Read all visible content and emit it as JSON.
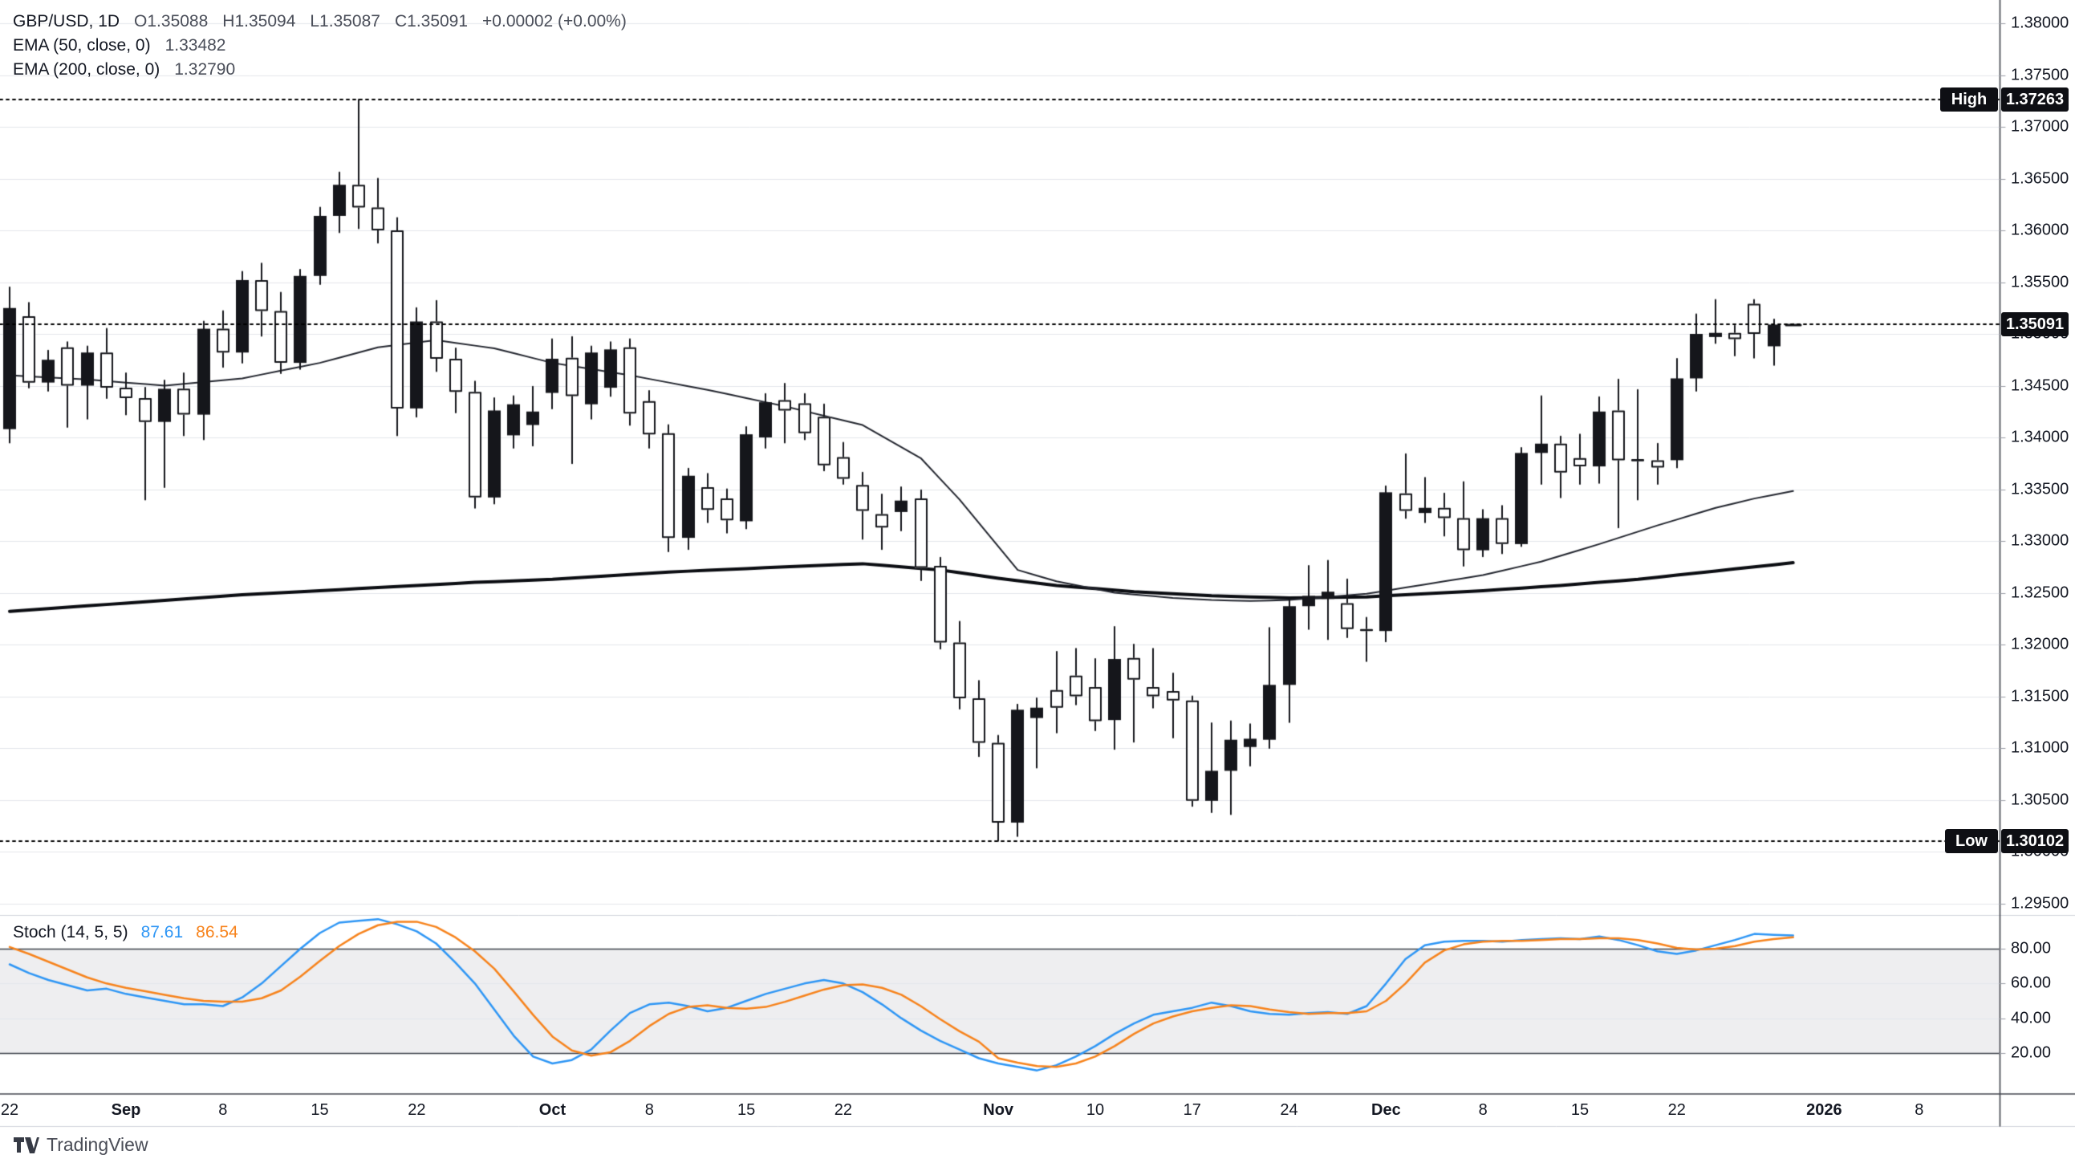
{
  "legend": {
    "symbol": "GBP/USD, 1D",
    "o": "O1.35088",
    "h": "H1.35094",
    "l": "L1.35087",
    "c": "C1.35091",
    "change": "+0.00002 (+0.00%)",
    "ema50_title": "EMA (50, close, 0)",
    "ema50_value": "1.33482",
    "ema200_title": "EMA (200, close, 0)",
    "ema200_value": "1.32790",
    "stoch_title": "Stoch (14, 5, 5)",
    "stoch_k_value": "87.61",
    "stoch_d_value": "86.54"
  },
  "price_axis_labels": [
    "1.38000",
    "1.37500",
    "1.37000",
    "1.36500",
    "1.36000",
    "1.35500",
    "1.35000",
    "1.34500",
    "1.34000",
    "1.33500",
    "1.33000",
    "1.32500",
    "1.32000",
    "1.31500",
    "1.31000",
    "1.30500",
    "1.30000",
    "1.29500"
  ],
  "stoch_axis_labels": [
    "80.00",
    "60.00",
    "40.00",
    "20.00"
  ],
  "badges": {
    "high_label": "High",
    "high_value": "1.37263",
    "low_label": "Low",
    "low_value": "1.30102",
    "last_value": "1.35091"
  },
  "logo_text": "TradingView",
  "colors": {
    "grid": "#E4E6EC",
    "axis_text": "#131722",
    "axis_border": "#42454d",
    "pane_separator": "#d1d4dc",
    "candle_up_fill": "#15161b",
    "candle_down_fill": "#ffffff",
    "candle_border": "#15161b",
    "ema50": "#23262f",
    "ema200": "#0b0d12",
    "stoch_k": "#2E96F5",
    "stoch_d": "#F7831C",
    "stoch_band_fill": "rgba(135,138,150,0.14)",
    "stoch_band_line": "#3f434c",
    "dotted_line": "#000000",
    "badge_bg": "#0e0f14",
    "badge_text": "#ffffff"
  },
  "chart_data": {
    "type": "candlestick",
    "symbol": "GBP/USD",
    "timeframe": "1D",
    "high_marker": 1.37263,
    "low_marker": 1.30102,
    "last_price": 1.35091,
    "price_axis": {
      "top": 1.38,
      "bottom": 1.295,
      "step": 0.005
    },
    "time_ticks": [
      {
        "label": "22",
        "i": 0,
        "bold": false
      },
      {
        "label": "Sep",
        "i": 6,
        "bold": true
      },
      {
        "label": "8",
        "i": 11,
        "bold": false
      },
      {
        "label": "15",
        "i": 16,
        "bold": false
      },
      {
        "label": "22",
        "i": 21,
        "bold": false
      },
      {
        "label": "Oct",
        "i": 28,
        "bold": true
      },
      {
        "label": "8",
        "i": 33,
        "bold": false
      },
      {
        "label": "15",
        "i": 38,
        "bold": false
      },
      {
        "label": "22",
        "i": 43,
        "bold": false
      },
      {
        "label": "Nov",
        "i": 51,
        "bold": true
      },
      {
        "label": "10",
        "i": 56,
        "bold": false
      },
      {
        "label": "17",
        "i": 61,
        "bold": false
      },
      {
        "label": "24",
        "i": 66,
        "bold": false
      },
      {
        "label": "Dec",
        "i": 71,
        "bold": true
      },
      {
        "label": "8",
        "i": 76,
        "bold": false
      },
      {
        "label": "15",
        "i": 81,
        "bold": false
      },
      {
        "label": "22",
        "i": 86,
        "bold": false
      },
      {
        "label": "2026",
        "i": 93.6,
        "bold": true
      },
      {
        "label": "8",
        "i": 98.5,
        "bold": false
      }
    ],
    "dates": [
      "Aug 22",
      "Aug 25",
      "Aug 26",
      "Aug 27",
      "Aug 28",
      "Aug 29",
      "Sep 1",
      "Sep 2",
      "Sep 3",
      "Sep 4",
      "Sep 5",
      "Sep 8",
      "Sep 9",
      "Sep 10",
      "Sep 11",
      "Sep 12",
      "Sep 15",
      "Sep 16",
      "Sep 17",
      "Sep 18",
      "Sep 19",
      "Sep 22",
      "Sep 23",
      "Sep 24",
      "Sep 25",
      "Sep 26",
      "Sep 29",
      "Sep 30",
      "Oct 1",
      "Oct 2",
      "Oct 3",
      "Oct 6",
      "Oct 7",
      "Oct 8",
      "Oct 9",
      "Oct 10",
      "Oct 13",
      "Oct 14",
      "Oct 15",
      "Oct 16",
      "Oct 17",
      "Oct 20",
      "Oct 21",
      "Oct 22",
      "Oct 23",
      "Oct 24",
      "Oct 27",
      "Oct 28",
      "Oct 29",
      "Oct 30",
      "Oct 31",
      "Nov 3",
      "Nov 4",
      "Nov 5",
      "Nov 6",
      "Nov 7",
      "Nov 10",
      "Nov 11",
      "Nov 12",
      "Nov 13",
      "Nov 14",
      "Nov 17",
      "Nov 18",
      "Nov 19",
      "Nov 20",
      "Nov 21",
      "Nov 24",
      "Nov 25",
      "Nov 26",
      "Nov 27",
      "Nov 28",
      "Dec 1",
      "Dec 2",
      "Dec 3",
      "Dec 4",
      "Dec 5",
      "Dec 8",
      "Dec 9",
      "Dec 10",
      "Dec 11",
      "Dec 12",
      "Dec 15",
      "Dec 16",
      "Dec 17",
      "Dec 18",
      "Dec 19",
      "Dec 22",
      "Dec 23",
      "Dec 24",
      "Dec 26",
      "Dec 29",
      "Dec 30",
      "Dec 31"
    ],
    "ohlc": [
      [
        1.3408,
        1.3545,
        1.3395,
        1.3525
      ],
      [
        1.3517,
        1.353,
        1.3448,
        1.3453
      ],
      [
        1.3453,
        1.3484,
        1.3445,
        1.3475
      ],
      [
        1.3487,
        1.3492,
        1.341,
        1.345
      ],
      [
        1.345,
        1.3488,
        1.3418,
        1.3482
      ],
      [
        1.3482,
        1.3505,
        1.3438,
        1.3448
      ],
      [
        1.3448,
        1.3462,
        1.3422,
        1.3438
      ],
      [
        1.3438,
        1.3448,
        1.334,
        1.3415
      ],
      [
        1.3415,
        1.3455,
        1.3352,
        1.3447
      ],
      [
        1.3447,
        1.3462,
        1.3402,
        1.3422
      ],
      [
        1.3422,
        1.3512,
        1.3398,
        1.3505
      ],
      [
        1.3505,
        1.3522,
        1.3468,
        1.3482
      ],
      [
        1.3482,
        1.356,
        1.3472,
        1.3552
      ],
      [
        1.3552,
        1.3568,
        1.3498,
        1.3522
      ],
      [
        1.3522,
        1.354,
        1.3462,
        1.3472
      ],
      [
        1.3472,
        1.3562,
        1.3466,
        1.3556
      ],
      [
        1.3556,
        1.3622,
        1.3548,
        1.3614
      ],
      [
        1.3614,
        1.3656,
        1.3598,
        1.3644
      ],
      [
        1.3644,
        1.37263,
        1.3602,
        1.3622
      ],
      [
        1.3622,
        1.365,
        1.3588,
        1.36
      ],
      [
        1.36,
        1.3612,
        1.3402,
        1.3428
      ],
      [
        1.3428,
        1.3525,
        1.342,
        1.3512
      ],
      [
        1.3512,
        1.3532,
        1.3464,
        1.3476
      ],
      [
        1.3476,
        1.3486,
        1.3424,
        1.3444
      ],
      [
        1.3444,
        1.3454,
        1.3332,
        1.3342
      ],
      [
        1.3342,
        1.3438,
        1.3336,
        1.3426
      ],
      [
        1.3402,
        1.344,
        1.339,
        1.3432
      ],
      [
        1.3412,
        1.3449,
        1.3392,
        1.3425
      ],
      [
        1.3443,
        1.3495,
        1.3428,
        1.3476
      ],
      [
        1.3477,
        1.3497,
        1.3375,
        1.344
      ],
      [
        1.3432,
        1.3488,
        1.3418,
        1.3482
      ],
      [
        1.3448,
        1.3492,
        1.344,
        1.3485
      ],
      [
        1.3487,
        1.3495,
        1.3412,
        1.3423
      ],
      [
        1.3435,
        1.3445,
        1.339,
        1.3403
      ],
      [
        1.3404,
        1.3412,
        1.329,
        1.3303
      ],
      [
        1.3303,
        1.337,
        1.3292,
        1.3363
      ],
      [
        1.3352,
        1.3365,
        1.3318,
        1.333
      ],
      [
        1.3341,
        1.335,
        1.3308,
        1.332
      ],
      [
        1.3319,
        1.341,
        1.3312,
        1.3403
      ],
      [
        1.34,
        1.3442,
        1.339,
        1.3434
      ],
      [
        1.3436,
        1.3452,
        1.3395,
        1.3426
      ],
      [
        1.3433,
        1.3442,
        1.3398,
        1.3404
      ],
      [
        1.342,
        1.3432,
        1.3368,
        1.3373
      ],
      [
        1.3381,
        1.3395,
        1.3355,
        1.336
      ],
      [
        1.3354,
        1.3366,
        1.3302,
        1.3329
      ],
      [
        1.3326,
        1.3345,
        1.3292,
        1.3313
      ],
      [
        1.3328,
        1.3352,
        1.331,
        1.3339
      ],
      [
        1.3341,
        1.3349,
        1.3262,
        1.3274
      ],
      [
        1.3276,
        1.3284,
        1.3196,
        1.3202
      ],
      [
        1.3202,
        1.3222,
        1.3138,
        1.3148
      ],
      [
        1.3148,
        1.3165,
        1.3092,
        1.3105
      ],
      [
        1.3105,
        1.3112,
        1.30102,
        1.3028
      ],
      [
        1.3028,
        1.3142,
        1.3015,
        1.3137
      ],
      [
        1.3129,
        1.3148,
        1.3081,
        1.3139
      ],
      [
        1.3156,
        1.3193,
        1.3115,
        1.3139
      ],
      [
        1.317,
        1.3196,
        1.3142,
        1.315
      ],
      [
        1.3159,
        1.3186,
        1.3117,
        1.3126
      ],
      [
        1.3127,
        1.3217,
        1.3099,
        1.3186
      ],
      [
        1.3187,
        1.32,
        1.3106,
        1.3166
      ],
      [
        1.3159,
        1.3196,
        1.3139,
        1.315
      ],
      [
        1.3155,
        1.3172,
        1.311,
        1.3146
      ],
      [
        1.3146,
        1.315,
        1.3044,
        1.3049
      ],
      [
        1.3049,
        1.3124,
        1.3038,
        1.3078
      ],
      [
        1.3078,
        1.3126,
        1.3036,
        1.3108
      ],
      [
        1.3101,
        1.3123,
        1.3083,
        1.3109
      ],
      [
        1.3108,
        1.3216,
        1.31,
        1.3161
      ],
      [
        1.3161,
        1.3243,
        1.3125,
        1.3237
      ],
      [
        1.3237,
        1.3276,
        1.3215,
        1.3247
      ],
      [
        1.3244,
        1.3281,
        1.3205,
        1.3251
      ],
      [
        1.324,
        1.3263,
        1.3207,
        1.3215
      ],
      [
        1.3215,
        1.3226,
        1.3184,
        1.3213
      ],
      [
        1.3213,
        1.3353,
        1.3203,
        1.3347
      ],
      [
        1.3346,
        1.3384,
        1.3322,
        1.3329
      ],
      [
        1.3327,
        1.3361,
        1.3318,
        1.3332
      ],
      [
        1.3332,
        1.3346,
        1.3305,
        1.3322
      ],
      [
        1.3322,
        1.3357,
        1.3276,
        1.3291
      ],
      [
        1.3291,
        1.333,
        1.3285,
        1.3322
      ],
      [
        1.3322,
        1.3334,
        1.3288,
        1.3297
      ],
      [
        1.3297,
        1.339,
        1.3295,
        1.3385
      ],
      [
        1.3385,
        1.344,
        1.3355,
        1.3394
      ],
      [
        1.3394,
        1.3401,
        1.3342,
        1.3366
      ],
      [
        1.338,
        1.3403,
        1.3355,
        1.3372
      ],
      [
        1.3372,
        1.3439,
        1.3356,
        1.3425
      ],
      [
        1.3426,
        1.3456,
        1.3313,
        1.3378
      ],
      [
        1.3379,
        1.3446,
        1.334,
        1.3377
      ],
      [
        1.3378,
        1.3394,
        1.3355,
        1.3371
      ],
      [
        1.3378,
        1.3476,
        1.3371,
        1.3457
      ],
      [
        1.3457,
        1.3519,
        1.3445,
        1.35
      ],
      [
        1.3497,
        1.3533,
        1.3491,
        1.3501
      ],
      [
        1.3501,
        1.3508,
        1.3479,
        1.3495
      ],
      [
        1.3529,
        1.3533,
        1.3477,
        1.35
      ],
      [
        1.3488,
        1.3514,
        1.347,
        1.3509
      ],
      [
        1.35088,
        1.35094,
        1.35087,
        1.35091
      ]
    ],
    "ema50_knots": [
      [
        0,
        1.346
      ],
      [
        4,
        1.3456
      ],
      [
        8,
        1.345
      ],
      [
        12,
        1.3457
      ],
      [
        16,
        1.3472
      ],
      [
        19,
        1.3487
      ],
      [
        22,
        1.3494
      ],
      [
        25,
        1.3486
      ],
      [
        28,
        1.3472
      ],
      [
        32,
        1.346
      ],
      [
        36,
        1.3446
      ],
      [
        40,
        1.343
      ],
      [
        44,
        1.3412
      ],
      [
        47,
        1.338
      ],
      [
        49,
        1.334
      ],
      [
        52,
        1.3272
      ],
      [
        54,
        1.3261
      ],
      [
        57,
        1.325
      ],
      [
        60,
        1.3245
      ],
      [
        62,
        1.3243
      ],
      [
        64,
        1.3242
      ],
      [
        66,
        1.3243
      ],
      [
        68,
        1.3246
      ],
      [
        70,
        1.3249
      ],
      [
        71,
        1.3252
      ],
      [
        73,
        1.3258
      ],
      [
        76,
        1.3267
      ],
      [
        79,
        1.328
      ],
      [
        82,
        1.3297
      ],
      [
        85,
        1.3315
      ],
      [
        88,
        1.3332
      ],
      [
        90,
        1.3341
      ],
      [
        92,
        1.33482
      ]
    ],
    "ema200_knots": [
      [
        0,
        1.3232
      ],
      [
        6,
        1.324
      ],
      [
        12,
        1.3248
      ],
      [
        18,
        1.3254
      ],
      [
        24,
        1.326
      ],
      [
        28,
        1.3263
      ],
      [
        34,
        1.327
      ],
      [
        40,
        1.3275
      ],
      [
        44,
        1.3278
      ],
      [
        48,
        1.3272
      ],
      [
        51,
        1.3264
      ],
      [
        54,
        1.3257
      ],
      [
        58,
        1.3251
      ],
      [
        62,
        1.3247
      ],
      [
        66,
        1.3245
      ],
      [
        70,
        1.3246
      ],
      [
        73,
        1.3249
      ],
      [
        76,
        1.3252
      ],
      [
        80,
        1.3257
      ],
      [
        84,
        1.3263
      ],
      [
        88,
        1.3271
      ],
      [
        92,
        1.3279
      ]
    ],
    "stochastic": {
      "params": [
        14,
        5,
        5
      ],
      "levels": [
        80,
        60,
        40,
        20
      ],
      "band": [
        20,
        80
      ],
      "k": [
        71,
        66,
        62,
        59,
        56,
        57,
        54,
        52,
        50,
        48,
        48,
        47,
        52,
        60,
        70,
        80,
        89,
        95,
        96,
        97,
        94,
        90,
        83,
        72,
        60,
        45,
        30,
        18,
        14,
        16,
        22,
        33,
        43,
        48,
        49,
        47,
        44,
        46,
        50,
        54,
        57,
        60,
        62,
        60,
        55,
        48,
        40,
        33,
        27,
        22,
        17,
        14,
        12,
        10,
        13,
        18,
        24,
        31,
        37,
        42,
        44,
        46,
        49,
        47,
        44,
        42.5,
        42,
        43,
        43.5,
        42.5,
        47,
        60,
        74,
        82,
        84,
        84.5,
        84.5,
        84,
        85,
        85.5,
        86,
        85.5,
        87,
        85,
        82,
        78.5,
        77,
        79,
        82,
        85,
        88.5,
        88,
        87.61
      ],
      "d": [
        81,
        77,
        72.5,
        68,
        63.5,
        60,
        57.5,
        55.5,
        53.5,
        51.5,
        50,
        49.5,
        49.5,
        51.5,
        56,
        64,
        73,
        81.5,
        88.5,
        93.5,
        95.5,
        95.5,
        92.5,
        86.5,
        78.5,
        68.5,
        55.5,
        42,
        29.5,
        21.5,
        18.5,
        20.5,
        27,
        35.5,
        42.5,
        46.5,
        47.5,
        46,
        45.5,
        46.5,
        49.5,
        53,
        56.5,
        59,
        59.5,
        57.5,
        53.5,
        47,
        39.5,
        32.5,
        26.5,
        17,
        14.5,
        12.5,
        12,
        14,
        18,
        24,
        31,
        37,
        41,
        44,
        46,
        47.5,
        47,
        45,
        43.5,
        42.5,
        43,
        43,
        44,
        50,
        60,
        72,
        79,
        82.5,
        84,
        84.5,
        84.5,
        85,
        85.5,
        85.5,
        86,
        86,
        85,
        83,
        80.5,
        79.5,
        80,
        81.5,
        84,
        85.5,
        86.54
      ]
    }
  }
}
